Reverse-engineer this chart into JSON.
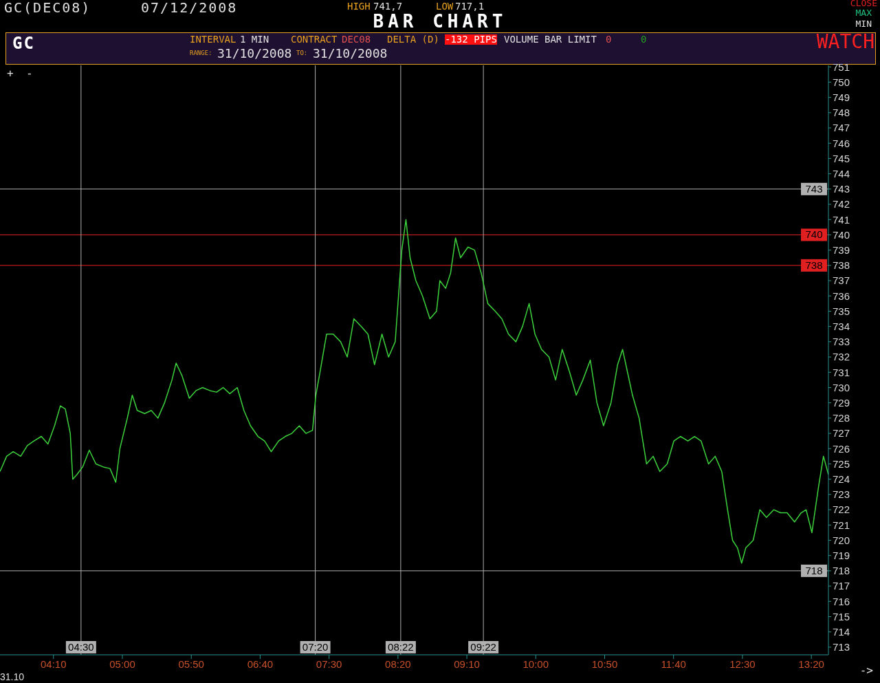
{
  "chart_data": {
    "type": "line",
    "title": "BAR CHART",
    "annotations": [
      "GC(DEC08)",
      "07/12/2008",
      "HIGH",
      "741,7",
      "LOW",
      "717,1",
      "CLOSE",
      "MAX",
      "MIN",
      "GC",
      "INTERVAL",
      "1 MIN",
      "CONTRACT",
      "DEC08",
      "DELTA (D)",
      "-132 PIPS",
      "VOLUME BAR LIMIT",
      "0",
      "0",
      "RANGE:",
      "31/10/2008",
      "TO:",
      "31/10/2008",
      "WATCH",
      "+",
      "-",
      "31.10",
      "->"
    ],
    "x": [
      3.52,
      3.6,
      3.68,
      3.77,
      3.85,
      3.93,
      4.02,
      4.1,
      4.18,
      4.25,
      4.31,
      4.37,
      4.4,
      4.45,
      4.52,
      4.6,
      4.68,
      4.77,
      4.85,
      4.92,
      4.97,
      5.06,
      5.12,
      5.18,
      5.27,
      5.35,
      5.43,
      5.51,
      5.6,
      5.65,
      5.72,
      5.81,
      5.89,
      5.97,
      6.06,
      6.14,
      6.22,
      6.3,
      6.39,
      6.47,
      6.55,
      6.64,
      6.72,
      6.8,
      6.89,
      6.97,
      7.05,
      7.14,
      7.22,
      7.3,
      7.34,
      7.39,
      7.47,
      7.55,
      7.64,
      7.72,
      7.8,
      7.89,
      7.97,
      8.05,
      8.14,
      8.22,
      8.3,
      8.34,
      8.38,
      8.43,
      8.48,
      8.55,
      8.63,
      8.72,
      8.8,
      8.84,
      8.91,
      8.97,
      9.03,
      9.09,
      9.18,
      9.26,
      9.34,
      9.42,
      9.51,
      9.59,
      9.67,
      9.76,
      9.84,
      9.92,
      9.99,
      10.07,
      10.16,
      10.24,
      10.32,
      10.41,
      10.49,
      10.57,
      10.66,
      10.74,
      10.82,
      10.91,
      10.99,
      11.05,
      11.11,
      11.17,
      11.25,
      11.34,
      11.42,
      11.5,
      11.59,
      11.67,
      11.75,
      11.84,
      11.92,
      12.0,
      12.09,
      12.17,
      12.25,
      12.32,
      12.38,
      12.44,
      12.49,
      12.54,
      12.63,
      12.71,
      12.79,
      12.88,
      12.96,
      13.04,
      13.13,
      13.21,
      13.27,
      13.34,
      13.42,
      13.48,
      13.54
    ],
    "values": [
      724.5,
      725.5,
      725.8,
      725.5,
      726.2,
      726.5,
      726.8,
      726.3,
      727.5,
      728.8,
      728.6,
      727.0,
      724.0,
      724.3,
      724.8,
      725.9,
      725.0,
      724.8,
      724.7,
      723.8,
      726.0,
      728.0,
      729.5,
      728.5,
      728.3,
      728.5,
      728.0,
      729.0,
      730.5,
      731.6,
      730.8,
      729.3,
      729.8,
      730.0,
      729.8,
      729.7,
      730.0,
      729.6,
      730.0,
      728.5,
      727.5,
      726.8,
      726.5,
      725.8,
      726.5,
      726.8,
      727.0,
      727.5,
      727.0,
      727.2,
      729.5,
      731.0,
      733.5,
      733.5,
      733.0,
      732.0,
      734.5,
      734.0,
      733.5,
      731.5,
      733.5,
      732.0,
      733.0,
      736.0,
      739.0,
      741.0,
      738.5,
      737.0,
      736.0,
      734.5,
      735.0,
      737.0,
      736.5,
      737.5,
      739.8,
      738.5,
      739.2,
      739.0,
      737.5,
      735.5,
      735.0,
      734.5,
      733.5,
      733.0,
      734.0,
      735.5,
      733.5,
      732.5,
      732.0,
      730.5,
      732.5,
      731.0,
      729.5,
      730.5,
      731.8,
      729.0,
      727.5,
      729.0,
      731.5,
      732.5,
      731.0,
      729.5,
      728.0,
      725.0,
      725.5,
      724.5,
      725.0,
      726.5,
      726.8,
      726.5,
      726.8,
      726.5,
      725.0,
      725.5,
      724.5,
      722.0,
      720.0,
      719.5,
      718.5,
      719.5,
      720.0,
      722.0,
      721.5,
      722.0,
      721.8,
      721.8,
      721.2,
      721.8,
      722.0,
      720.5,
      723.5,
      725.5,
      724.3
    ],
    "color": "#3cd23c",
    "xlim": [
      3.52,
      13.54
    ],
    "xticks": [
      {
        "value": 4.1667,
        "label": "04:10"
      },
      {
        "value": 5,
        "label": "05:00"
      },
      {
        "value": 5.8333,
        "label": "05:50"
      },
      {
        "value": 6.6667,
        "label": "06:40"
      },
      {
        "value": 7.5,
        "label": "07:30"
      },
      {
        "value": 8.3333,
        "label": "08:20"
      },
      {
        "value": 9.1667,
        "label": "09:10"
      },
      {
        "value": 10,
        "label": "10:00"
      },
      {
        "value": 10.8333,
        "label": "10:50"
      },
      {
        "value": 11.6667,
        "label": "11:40"
      },
      {
        "value": 12.5,
        "label": "12:30"
      },
      {
        "value": 13.3333,
        "label": "13:20"
      }
    ],
    "ylim": [
      712.5,
      751.1
    ],
    "yticks": [
      713,
      714,
      715,
      716,
      717,
      718,
      719,
      720,
      721,
      722,
      723,
      724,
      725,
      726,
      727,
      728,
      729,
      730,
      731,
      732,
      733,
      734,
      735,
      736,
      737,
      738,
      739,
      740,
      741,
      742,
      743,
      744,
      745,
      746,
      747,
      748,
      749,
      750,
      751
    ],
    "ref_lines": [
      {
        "axis": "y",
        "value": 743,
        "label": "743",
        "color": "#b0b0b0"
      },
      {
        "axis": "y",
        "value": 740,
        "label": "740",
        "color": "#e02020"
      },
      {
        "axis": "y",
        "value": 738,
        "label": "738",
        "color": "#e02020"
      },
      {
        "axis": "y",
        "value": 718,
        "label": "718",
        "color": "#b0b0b0"
      },
      {
        "axis": "x",
        "value": 4.5,
        "label": "04:30",
        "color": "#b0b0b0"
      },
      {
        "axis": "x",
        "value": 7.3333,
        "label": "07:20",
        "color": "#b0b0b0"
      },
      {
        "axis": "x",
        "value": 8.3667,
        "label": "08:22",
        "color": "#b0b0b0"
      },
      {
        "axis": "x",
        "value": 9.3667,
        "label": "09:22",
        "color": "#b0b0b0"
      }
    ]
  }
}
